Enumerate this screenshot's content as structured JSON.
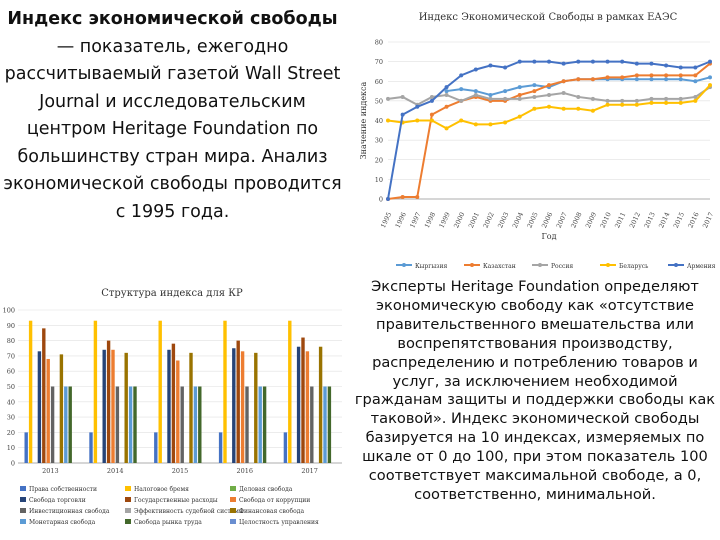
{
  "left_text": {
    "bold_part": "Индекс экономической свободы",
    "rest": " — показатель, ежегодно рассчитываемый газетой Wall Street Journal и исследовательским центром Heritage Foundation по большинству стран мира. Анализ экономической свободы проводится с 1995 года."
  },
  "right_text": "Эксперты Heritage Foundation определяют экономическую свободу как «отсутствие правительственного вмешательства или воспрепятствования производству, распределению и потреблению товаров и услуг, за исключением необходимой гражданам защиты и поддержки свободы как таковой». Индекс экономической свободы базируется на 10 индексах, измеряемых по шкале от 0 до 100, при этом показатель 100 соответствует максимальной свободе, а 0, соответственно, минимальной.",
  "chart_data": [
    {
      "type": "line",
      "title": "Индекс Экономической Свободы в рамках ЕАЭС",
      "xlabel": "Год",
      "ylabel": "Значение индекса",
      "ylim": [
        0,
        80
      ],
      "yticks": [
        0,
        10,
        20,
        30,
        40,
        50,
        60,
        70,
        80
      ],
      "grid": true,
      "legend_position": "bottom",
      "x": [
        "1995",
        "1996",
        "1997",
        "1998",
        "1999",
        "2000",
        "2001",
        "2002",
        "2003",
        "2004",
        "2005",
        "2006",
        "2007",
        "2008",
        "2009",
        "2010",
        "2011",
        "2012",
        "2013",
        "2014",
        "2015",
        "2016",
        "2017"
      ],
      "series": [
        {
          "name": "Кыргызия",
          "color": "#5b9bd5",
          "values": [
            null,
            null,
            null,
            null,
            55,
            56,
            55,
            53,
            55,
            57,
            58,
            57,
            60,
            61,
            61,
            61,
            61,
            61,
            61,
            61,
            61,
            60,
            62
          ]
        },
        {
          "name": "Казахстан",
          "color": "#ed7d31",
          "values": [
            0,
            1,
            1,
            43,
            47,
            50,
            52,
            50,
            50,
            53,
            55,
            58,
            60,
            61,
            61,
            62,
            62,
            63,
            63,
            63,
            63,
            63,
            69
          ]
        },
        {
          "name": "Россия",
          "color": "#a5a5a5",
          "values": [
            51,
            52,
            48,
            52,
            53,
            50,
            53,
            51,
            51,
            51,
            52,
            53,
            54,
            52,
            51,
            50,
            50,
            50,
            51,
            51,
            51,
            52,
            57
          ]
        },
        {
          "name": "Беларусь",
          "color": "#ffc000",
          "values": [
            40,
            39,
            40,
            40,
            36,
            40,
            38,
            38,
            39,
            42,
            46,
            47,
            46,
            46,
            45,
            48,
            48,
            48,
            49,
            49,
            49,
            50,
            58
          ]
        },
        {
          "name": "Армения",
          "color": "#4472c4",
          "values": [
            0,
            43,
            47,
            50,
            57,
            63,
            66,
            68,
            67,
            70,
            70,
            70,
            69,
            70,
            70,
            70,
            70,
            69,
            69,
            68,
            67,
            67,
            70
          ]
        }
      ]
    },
    {
      "type": "bar",
      "title": "Структура индекса для КР",
      "ylim": [
        0,
        100
      ],
      "yticks": [
        0,
        10,
        20,
        30,
        40,
        50,
        60,
        70,
        80,
        90,
        100
      ],
      "grid": true,
      "legend_position": "bottom",
      "categories": [
        "2013",
        "2014",
        "2015",
        "2016",
        "2017"
      ],
      "series": [
        {
          "name": "Права собственности",
          "color": "#4472c4",
          "values": [
            20,
            20,
            20,
            20,
            20
          ]
        },
        {
          "name": "Налоговое бремя",
          "color": "#ffc000",
          "values": [
            93,
            93,
            93,
            93,
            93
          ]
        },
        {
          "name": "Деловая свобода",
          "color": "#70ad47",
          "values": [
            0,
            0,
            0,
            0,
            0
          ]
        },
        {
          "name": "Свобода торговли",
          "color": "#264478",
          "values": [
            73,
            74,
            74,
            75,
            76
          ]
        },
        {
          "name": "Государственные расходы",
          "color": "#9e480e",
          "values": [
            88,
            80,
            78,
            80,
            82
          ]
        },
        {
          "name": "Свобода от коррупции",
          "color": "#ed7d31",
          "values": [
            68,
            74,
            67,
            73,
            73
          ]
        },
        {
          "name": "Инвестиционная свобода",
          "color": "#636363",
          "values": [
            50,
            50,
            50,
            50,
            50
          ]
        },
        {
          "name": "Эффективность судебной системы",
          "color": "#a5a5a5",
          "values": [
            0,
            0,
            0,
            0,
            0
          ]
        },
        {
          "name": "Финансовая свобода",
          "color": "#997300",
          "values": [
            71,
            72,
            72,
            72,
            76
          ]
        },
        {
          "name": "Монетарная свобода",
          "color": "#5b9bd5",
          "values": [
            50,
            50,
            50,
            50,
            50
          ]
        },
        {
          "name": "Свобода рынка труда",
          "color": "#43682b",
          "values": [
            50,
            50,
            50,
            50,
            50
          ]
        },
        {
          "name": "Целостность управления",
          "color": "#698ed0",
          "values": [
            0,
            0,
            0,
            0,
            0
          ]
        }
      ]
    }
  ]
}
